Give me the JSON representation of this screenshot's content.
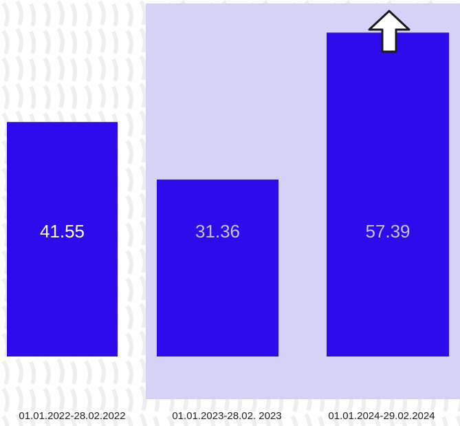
{
  "chart_data": {
    "type": "bar",
    "categories": [
      "01.01.2022-28.02.2022",
      "01.01.2023-28.02. 2023",
      "01.01.2024-29.02.2024"
    ],
    "values": [
      41.55,
      31.36,
      57.39
    ],
    "color": "#2e0bec"
  }
}
